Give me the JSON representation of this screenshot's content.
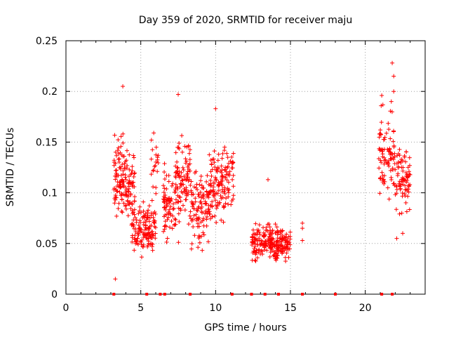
{
  "chart_data": {
    "type": "scatter",
    "title": "Day 359 of 2020, SRMTID for receiver maju",
    "xlabel": "GPS time / hours",
    "ylabel": "SRMTID / TECUs",
    "xlim": [
      0,
      24
    ],
    "ylim": [
      0,
      0.25
    ],
    "xticks": [
      0,
      5,
      10,
      15,
      20
    ],
    "yticks": [
      0,
      0.05,
      0.1,
      0.15,
      0.2,
      0.25
    ],
    "xtick_labels": [
      "0",
      "5",
      "10",
      "15",
      "20"
    ],
    "ytick_labels": [
      "0",
      "0.05",
      "0.1",
      "0.15",
      "0.2",
      "0.25"
    ],
    "grid": true,
    "marker": "+",
    "color": "#ff0000",
    "clusters": [
      {
        "x_start": 3.2,
        "x_end": 4.0,
        "y_center": 0.115,
        "y_spread": 0.04,
        "count": 90
      },
      {
        "x_start": 4.0,
        "x_end": 4.6,
        "y_center": 0.105,
        "y_spread": 0.035,
        "count": 60
      },
      {
        "x_start": 4.4,
        "x_end": 6.0,
        "y_center": 0.065,
        "y_spread": 0.02,
        "count": 140
      },
      {
        "x_start": 5.7,
        "x_end": 6.2,
        "y_center": 0.13,
        "y_spread": 0.03,
        "count": 20
      },
      {
        "x_start": 6.5,
        "x_end": 7.3,
        "y_center": 0.09,
        "y_spread": 0.03,
        "count": 70
      },
      {
        "x_start": 7.3,
        "x_end": 8.3,
        "y_center": 0.11,
        "y_spread": 0.04,
        "count": 100
      },
      {
        "x_start": 8.3,
        "x_end": 9.6,
        "y_center": 0.085,
        "y_spread": 0.035,
        "count": 110
      },
      {
        "x_start": 9.6,
        "x_end": 11.2,
        "y_center": 0.11,
        "y_spread": 0.035,
        "count": 140
      },
      {
        "x_start": 12.4,
        "x_end": 14.0,
        "y_center": 0.05,
        "y_spread": 0.015,
        "count": 150
      },
      {
        "x_start": 14.0,
        "x_end": 15.0,
        "y_center": 0.05,
        "y_spread": 0.015,
        "count": 100
      },
      {
        "x_start": 20.9,
        "x_end": 22.0,
        "y_center": 0.14,
        "y_spread": 0.045,
        "count": 90
      },
      {
        "x_start": 22.0,
        "x_end": 23.0,
        "y_center": 0.11,
        "y_spread": 0.035,
        "count": 80
      }
    ],
    "outliers": [
      {
        "x": 3.3,
        "y": 0.015
      },
      {
        "x": 3.8,
        "y": 0.205
      },
      {
        "x": 7.5,
        "y": 0.197
      },
      {
        "x": 10.0,
        "y": 0.183
      },
      {
        "x": 13.5,
        "y": 0.113
      },
      {
        "x": 15.8,
        "y": 0.07
      },
      {
        "x": 15.8,
        "y": 0.065
      },
      {
        "x": 15.8,
        "y": 0.053
      },
      {
        "x": 21.1,
        "y": 0.196
      },
      {
        "x": 21.8,
        "y": 0.228
      },
      {
        "x": 21.9,
        "y": 0.215
      },
      {
        "x": 21.9,
        "y": 0.2
      },
      {
        "x": 22.1,
        "y": 0.055
      },
      {
        "x": 22.5,
        "y": 0.06
      }
    ],
    "zero_markers_x": [
      3.2,
      5.4,
      6.3,
      6.6,
      8.3,
      11.1,
      12.4,
      13.3,
      14.2,
      15.8,
      18.0,
      21.1,
      21.8
    ]
  }
}
